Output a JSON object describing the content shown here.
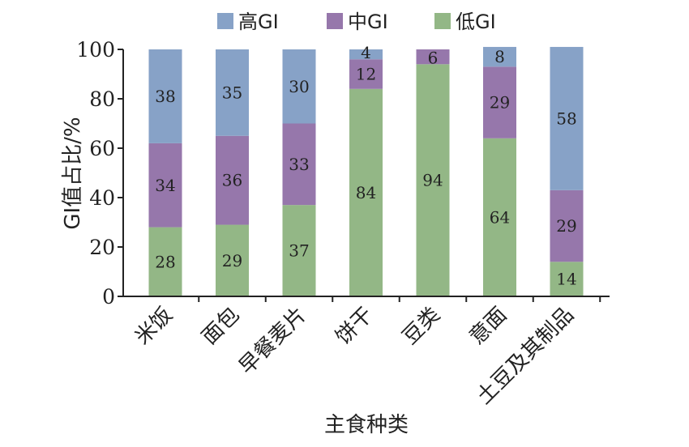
{
  "chart_data": {
    "type": "bar",
    "stacked": true,
    "categories": [
      "米饭",
      "面包",
      "早餐麦片",
      "饼干",
      "豆类",
      "意面",
      "土豆及其制品"
    ],
    "series": [
      {
        "name": "低GI",
        "color": "#93b786",
        "values": [
          28,
          29,
          37,
          84,
          94,
          64,
          14
        ]
      },
      {
        "name": "中GI",
        "color": "#9677ab",
        "values": [
          34,
          36,
          33,
          12,
          6,
          29,
          29
        ]
      },
      {
        "name": "高GI",
        "color": "#87a2c7",
        "values": [
          38,
          35,
          30,
          4,
          0,
          8,
          58
        ]
      }
    ],
    "legend_order": [
      2,
      1,
      0
    ],
    "xlabel": "主食种类",
    "ylabel": "GI值占比/%",
    "ylim": [
      0,
      100
    ],
    "yticks": [
      0,
      20,
      40,
      60,
      80,
      100
    ],
    "grid": false,
    "legend_position": "top"
  }
}
